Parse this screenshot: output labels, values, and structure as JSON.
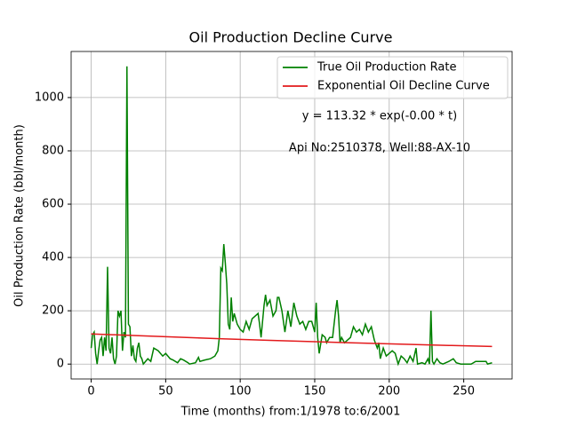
{
  "chart_data": {
    "type": "line",
    "title": "Oil Production Decline Curve",
    "xlabel": "Time (months) from:1/1978 to:6/2001",
    "ylabel": "Oil Production Rate (bbl/month)",
    "annotations": [
      "y = 113.32 * exp(-0.00 * t)",
      "Api No:2510378, Well:88-AX-10"
    ],
    "legend": "upper right",
    "grid": true,
    "xlim": [
      -13.45,
      282.45
    ],
    "xticks": [
      0,
      50,
      100,
      150,
      200,
      250
    ],
    "ylim": [
      -55.85,
      1172.85
    ],
    "yticks": [
      0,
      200,
      400,
      600,
      800,
      1000
    ],
    "series": [
      {
        "name": "True Oil Production Rate",
        "color": "#008000",
        "x": [
          0,
          1,
          2,
          3,
          4,
          5,
          6,
          7,
          8,
          9,
          10,
          11,
          12,
          13,
          14,
          15,
          16,
          17,
          18,
          19,
          20,
          21,
          22,
          23,
          24,
          25,
          26,
          27,
          28,
          29,
          30,
          31,
          32,
          33,
          34,
          35,
          38,
          40,
          42,
          45,
          48,
          50,
          53,
          55,
          58,
          60,
          62,
          65,
          66,
          70,
          72,
          73,
          76,
          80,
          83,
          85,
          86,
          87,
          88,
          89,
          90,
          91,
          92,
          93,
          94,
          95,
          96,
          98,
          100,
          102,
          104,
          106,
          108,
          110,
          112,
          113,
          114,
          116,
          117,
          118,
          120,
          122,
          124,
          125,
          126,
          128,
          130,
          132,
          134,
          136,
          138,
          140,
          142,
          144,
          146,
          148,
          150,
          151,
          152,
          153,
          155,
          157,
          158,
          160,
          162,
          164,
          165,
          166,
          167,
          168,
          170,
          172,
          174,
          176,
          178,
          180,
          182,
          184,
          186,
          188,
          190,
          192,
          193,
          194,
          196,
          198,
          200,
          202,
          204,
          206,
          208,
          210,
          212,
          214,
          216,
          218,
          219,
          222,
          224,
          226,
          227,
          228,
          229,
          230,
          232,
          234,
          236,
          240,
          243,
          245,
          248,
          255,
          258,
          262,
          265,
          266,
          269
        ],
        "values": [
          60,
          110,
          120,
          40,
          0,
          50,
          90,
          100,
          30,
          100,
          50,
          365,
          60,
          40,
          100,
          20,
          0,
          30,
          200,
          180,
          200,
          50,
          120,
          100,
          1117,
          150,
          140,
          30,
          70,
          20,
          10,
          60,
          80,
          30,
          20,
          0,
          20,
          10,
          60,
          50,
          30,
          40,
          20,
          15,
          5,
          20,
          15,
          5,
          0,
          5,
          25,
          10,
          15,
          20,
          30,
          50,
          100,
          360,
          350,
          450,
          380,
          300,
          150,
          130,
          250,
          160,
          190,
          150,
          130,
          120,
          160,
          130,
          170,
          180,
          190,
          150,
          100,
          220,
          260,
          220,
          240,
          180,
          200,
          250,
          250,
          200,
          120,
          200,
          140,
          230,
          180,
          150,
          160,
          130,
          160,
          160,
          120,
          230,
          100,
          40,
          110,
          100,
          80,
          100,
          100,
          200,
          240,
          180,
          80,
          100,
          80,
          90,
          100,
          140,
          120,
          130,
          110,
          150,
          120,
          140,
          90,
          60,
          80,
          20,
          60,
          30,
          40,
          50,
          40,
          0,
          30,
          20,
          5,
          30,
          10,
          60,
          0,
          5,
          0,
          20,
          0,
          200,
          10,
          0,
          20,
          5,
          0,
          10,
          20,
          5,
          0,
          0,
          10,
          10,
          10,
          0,
          5
        ]
      },
      {
        "name": "Exponential Oil Decline Curve",
        "color": "#e31a1c",
        "x": [
          0,
          30,
          60,
          90,
          120,
          150,
          180,
          210,
          240,
          269
        ],
        "values": [
          113.32,
          106.7,
          100.5,
          94.6,
          89.0,
          83.9,
          79.0,
          74.3,
          70.0,
          66.2
        ]
      }
    ]
  }
}
